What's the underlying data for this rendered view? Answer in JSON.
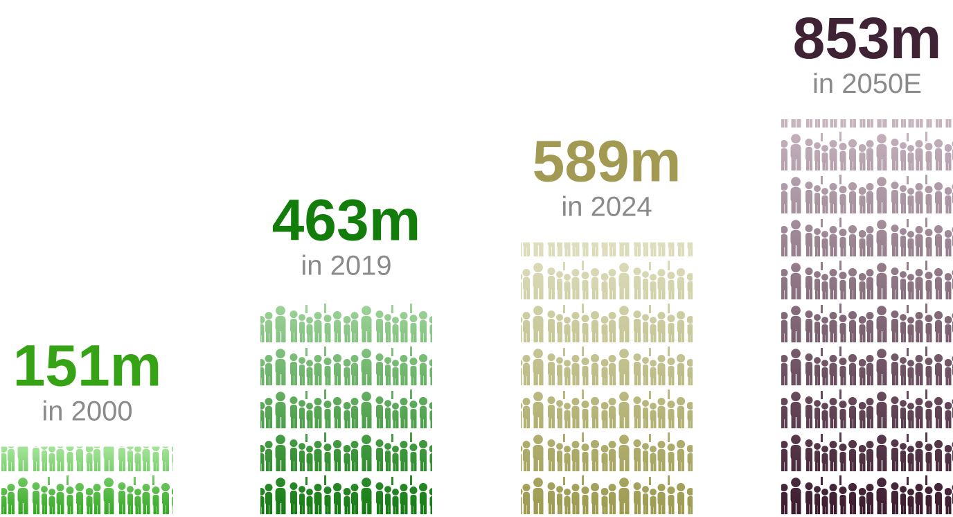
{
  "chart_data": {
    "type": "bar",
    "style": "pictograph",
    "icon": "people-crowd-icon",
    "unit": "m",
    "categories": [
      "in 2000",
      "in 2019",
      "in 2024",
      "in 2050E"
    ],
    "values": [
      151,
      463,
      589,
      853
    ],
    "value_labels": [
      "151m",
      "463m",
      "589m",
      "853m"
    ],
    "label_colors": [
      "#35a315",
      "#137d0c",
      "#a29a53",
      "#3f2234"
    ],
    "gradients": [
      {
        "top": "#a5e59a",
        "bottom": "#2fa51e"
      },
      {
        "top": "#9fd49b",
        "bottom": "#127a11"
      },
      {
        "top": "#dfdfc0",
        "bottom": "#9c9a4e"
      },
      {
        "top": "#c7b5c0",
        "bottom": "#3b1a2e"
      }
    ],
    "ylim": [
      0,
      853
    ],
    "grid": false,
    "legend": "none"
  }
}
